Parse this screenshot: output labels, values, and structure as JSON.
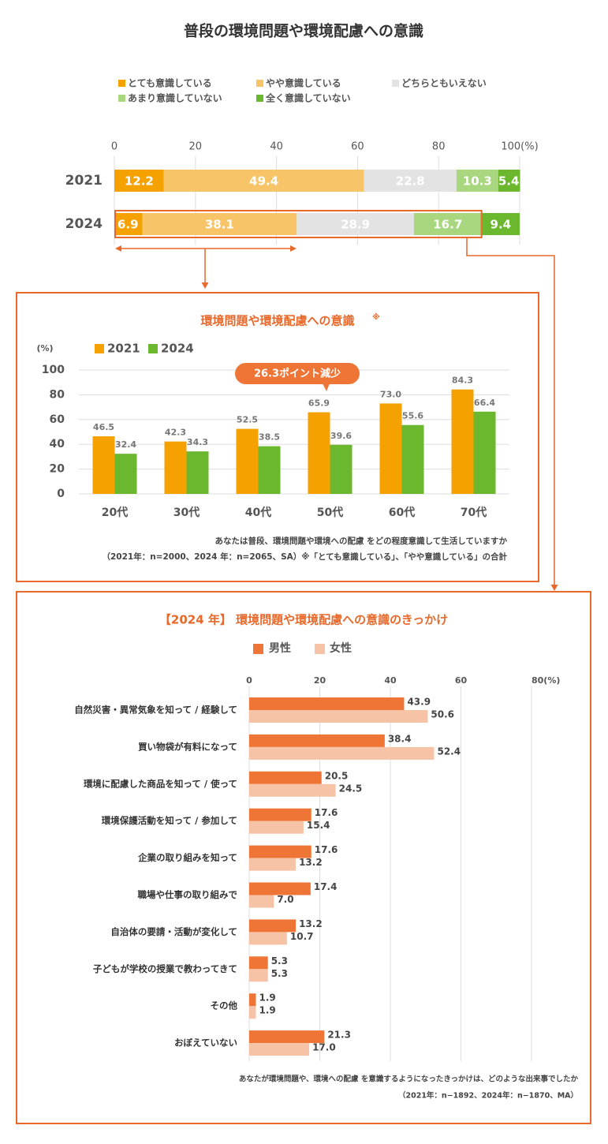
{
  "title": "普段の環境問題や環境配慮への意識",
  "colors": {
    "very": "#F5A200",
    "somewhat": "#F8C468",
    "neutral": "#E3E3E3",
    "notmuch": "#A8D77F",
    "notatall": "#6BB82E",
    "orange_frame": "#E8692A",
    "male": "#EE7536",
    "female": "#F7C3A6",
    "grid": "#DDDDDD",
    "text": "#333333",
    "subtext": "#555555"
  },
  "chart_data": [
    {
      "type": "bar",
      "orientation": "horizontal-stacked",
      "title": "普段の環境問題や環境配慮への意識",
      "legend": [
        "とても意識している",
        "やや意識している",
        "どちらともいえない",
        "あまり意識していない",
        "全く意識していない"
      ],
      "categories": [
        "2021",
        "2024"
      ],
      "series": [
        {
          "name": "とても意識している",
          "values": [
            12.2,
            6.9
          ]
        },
        {
          "name": "やや意識している",
          "values": [
            49.4,
            38.1
          ]
        },
        {
          "name": "どちらともいえない",
          "values": [
            22.8,
            28.9
          ]
        },
        {
          "name": "あまり意識していない",
          "values": [
            10.3,
            16.7
          ]
        },
        {
          "name": "全く意識していない",
          "values": [
            5.4,
            9.4
          ]
        }
      ],
      "value_labels": [
        [
          "12.2",
          "49.4",
          "22.8",
          "10.3",
          "5.4"
        ],
        [
          "6.9",
          "38.1",
          "28.9",
          "16.7",
          "9.4"
        ]
      ],
      "xticks": [
        "0",
        "20",
        "40",
        "60",
        "80",
        "100(%)"
      ],
      "xlim": [
        0,
        100
      ]
    },
    {
      "type": "bar",
      "title": "環境問題や環境配慮への意識",
      "title_note": "※",
      "ylabel": "(%)",
      "categories": [
        "20代",
        "30代",
        "40代",
        "50代",
        "60代",
        "70代"
      ],
      "series": [
        {
          "name": "2021",
          "values": [
            46.5,
            42.3,
            52.5,
            65.9,
            73.0,
            84.3
          ]
        },
        {
          "name": "2024",
          "values": [
            32.4,
            34.3,
            38.5,
            39.6,
            55.6,
            66.4
          ]
        }
      ],
      "value_labels": [
        [
          "46.5",
          "42.3",
          "52.5",
          "65.9",
          "73.0",
          "84.3"
        ],
        [
          "32.4",
          "34.3",
          "38.5",
          "39.6",
          "55.6",
          "66.4"
        ]
      ],
      "yticks": [
        "0",
        "20",
        "40",
        "60",
        "80",
        "100"
      ],
      "ylim": [
        0,
        100
      ],
      "callout": "26.3ポイント減少",
      "callout_category": "50代",
      "note1": "あなたは普段、環境問題や環境への配慮 をどの程度意識して生活していますか",
      "note2": "（2021年：n=2000、2024 年：n=2065、SA）※「とても意識している」、「やや意識している」の合計"
    },
    {
      "type": "bar",
      "orientation": "horizontal",
      "title": "【2024 年】 環境問題や環境配慮への意識のきっかけ",
      "categories": [
        "自然災害・異常気象を知って / 経験して",
        "買い物袋が有料になって",
        "環境に配慮した商品を知って / 使って",
        "環境保護活動を知って / 参加して",
        "企業の取り組みを知って",
        "職場や仕事の取り組みで",
        "自治体の要請・活動が変化して",
        "子どもが学校の授業で教わってきて",
        "その他",
        "おぼえていない"
      ],
      "series": [
        {
          "name": "男性",
          "values": [
            43.9,
            38.4,
            20.5,
            17.6,
            17.6,
            17.4,
            13.2,
            5.3,
            1.9,
            21.3
          ]
        },
        {
          "name": "女性",
          "values": [
            50.6,
            52.4,
            24.5,
            15.4,
            13.2,
            7.0,
            10.7,
            5.3,
            1.9,
            17.0
          ]
        }
      ],
      "value_labels": [
        [
          "43.9",
          "38.4",
          "20.5",
          "17.6",
          "17.6",
          "17.4",
          "13.2",
          "5.3",
          "1.9",
          "21.3"
        ],
        [
          "50.6",
          "52.4",
          "24.5",
          "15.4",
          "13.2",
          "7.0",
          "10.7",
          "5.3",
          "1.9",
          "17.0"
        ]
      ],
      "xticks": [
        "0",
        "20",
        "40",
        "60",
        "80(%)"
      ],
      "xlim": [
        0,
        80
      ],
      "note1": "あなたが環境問題や、環境への配慮 を意識するようになったきっかけは、どのような出来事でしたか",
      "note2": "（2021年：n−1892、2024年：n−1870、MA）"
    }
  ]
}
